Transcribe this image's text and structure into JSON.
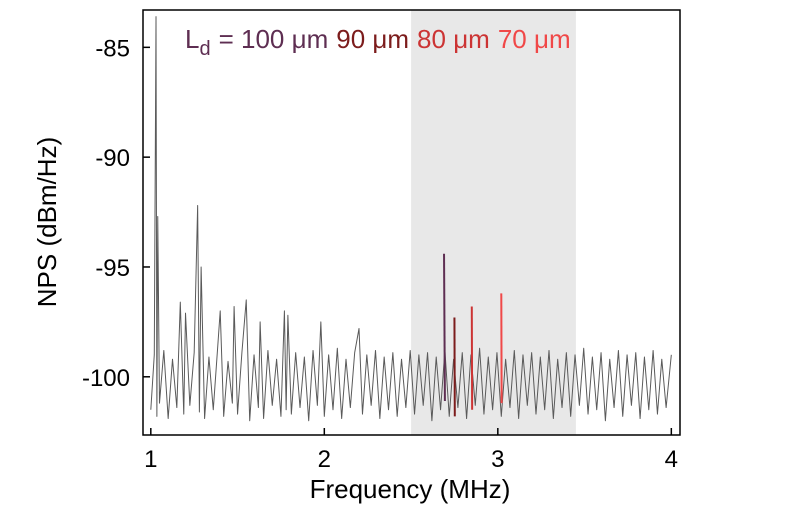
{
  "chart_data": {
    "type": "line",
    "xlabel": "Frequency (MHz)",
    "ylabel": "NPS (dBm/Hz)",
    "xlim": [
      0.955,
      4.05
    ],
    "ylim": [
      -102.65,
      -83.3
    ],
    "xticks": [
      1,
      2,
      3,
      4
    ],
    "yticks": [
      -100,
      -95,
      -90,
      -85
    ],
    "shade": [
      2.5,
      3.45
    ],
    "shade_color": "#e8e8e8",
    "legend_label": "L",
    "legend_subscript": "d",
    "series": [
      {
        "color": "#5a5a5a",
        "x": [
          1.0,
          1.02,
          1.03,
          1.035,
          1.04,
          1.05,
          1.075,
          1.1,
          1.125,
          1.15,
          1.17,
          1.19,
          1.2,
          1.225,
          1.25,
          1.27,
          1.28,
          1.29,
          1.31,
          1.335,
          1.36,
          1.385,
          1.4,
          1.42,
          1.445,
          1.47,
          1.48,
          1.5,
          1.525,
          1.55,
          1.57,
          1.595,
          1.62,
          1.63,
          1.65,
          1.675,
          1.7,
          1.725,
          1.75,
          1.77,
          1.78,
          1.79,
          1.81,
          1.835,
          1.86,
          1.885,
          1.91,
          1.935,
          1.96,
          1.98,
          2.0,
          2.025,
          2.05,
          2.075,
          2.1,
          2.125,
          2.15,
          2.175,
          2.2,
          2.22,
          2.245,
          2.27,
          2.295,
          2.32,
          2.345,
          2.37,
          2.395,
          2.42,
          2.445,
          2.47,
          2.495,
          2.52,
          2.545,
          2.57,
          2.595,
          2.62,
          2.645,
          2.67,
          2.695,
          2.72,
          2.745,
          2.77,
          2.795,
          2.82,
          2.845,
          2.87,
          2.895,
          2.92,
          2.945,
          2.97,
          2.995,
          3.02,
          3.045,
          3.07,
          3.095,
          3.12,
          3.145,
          3.17,
          3.195,
          3.22,
          3.245,
          3.27,
          3.295,
          3.32,
          3.345,
          3.37,
          3.395,
          3.42,
          3.445,
          3.47,
          3.495,
          3.52,
          3.545,
          3.57,
          3.595,
          3.62,
          3.645,
          3.67,
          3.695,
          3.72,
          3.745,
          3.77,
          3.795,
          3.82,
          3.845,
          3.87,
          3.895,
          3.92,
          3.945,
          3.97,
          4.0
        ],
        "values": [
          -101.5,
          -99.0,
          -83.6,
          -101.8,
          -92.7,
          -101.2,
          -98.8,
          -101.9,
          -99.2,
          -101.4,
          -96.6,
          -101.7,
          -97.1,
          -101.3,
          -98.9,
          -92.2,
          -101.6,
          -95.0,
          -101.9,
          -99.1,
          -101.5,
          -98.7,
          -97.0,
          -101.8,
          -99.3,
          -101.2,
          -96.8,
          -101.7,
          -98.9,
          -96.5,
          -102.0,
          -99.0,
          -101.4,
          -97.5,
          -101.9,
          -98.8,
          -101.3,
          -99.2,
          -101.8,
          -97.0,
          -101.5,
          -97.2,
          -101.7,
          -98.9,
          -101.4,
          -99.1,
          -102.0,
          -98.8,
          -101.3,
          -97.5,
          -101.8,
          -99.0,
          -101.5,
          -98.7,
          -101.9,
          -99.2,
          -101.4,
          -98.9,
          -97.8,
          -101.7,
          -99.0,
          -101.3,
          -98.8,
          -101.9,
          -99.1,
          -101.5,
          -98.9,
          -101.8,
          -99.2,
          -101.4,
          -98.8,
          -101.7,
          -99.0,
          -101.3,
          -98.9,
          -102.0,
          -99.1,
          -101.5,
          -98.8,
          -101.8,
          -99.2,
          -101.4,
          -98.9,
          -101.9,
          -99.0,
          -101.3,
          -98.7,
          -101.7,
          -99.1,
          -101.5,
          -98.9,
          -101.8,
          -99.2,
          -101.4,
          -98.8,
          -101.9,
          -99.0,
          -101.3,
          -98.9,
          -101.7,
          -99.1,
          -101.5,
          -98.8,
          -101.9,
          -99.2,
          -101.4,
          -98.9,
          -101.8,
          -99.0,
          -101.3,
          -98.7,
          -101.7,
          -99.1,
          -101.5,
          -98.9,
          -102.0,
          -99.2,
          -101.4,
          -98.8,
          -101.8,
          -99.0,
          -101.3,
          -98.9,
          -101.9,
          -99.1,
          -101.5,
          -98.8,
          -101.7,
          -99.2,
          -101.4,
          -99.0
        ]
      },
      {
        "name": "= 100 μm",
        "color": "#5e2e52",
        "x": [
          2.69,
          2.695
        ],
        "values": [
          -94.4,
          -101.1
        ]
      },
      {
        "name": "90 μm",
        "color": "#7c1c1c",
        "x": [
          2.75,
          2.752
        ],
        "values": [
          -97.3,
          -101.8
        ]
      },
      {
        "name": "80 μm",
        "color": "#cc3434",
        "x": [
          2.85,
          2.852
        ],
        "values": [
          -96.8,
          -101.5
        ]
      },
      {
        "name": "70 μm",
        "color": "#f04848",
        "x": [
          3.02,
          3.022
        ],
        "values": [
          -96.2,
          -101.2
        ]
      }
    ]
  }
}
